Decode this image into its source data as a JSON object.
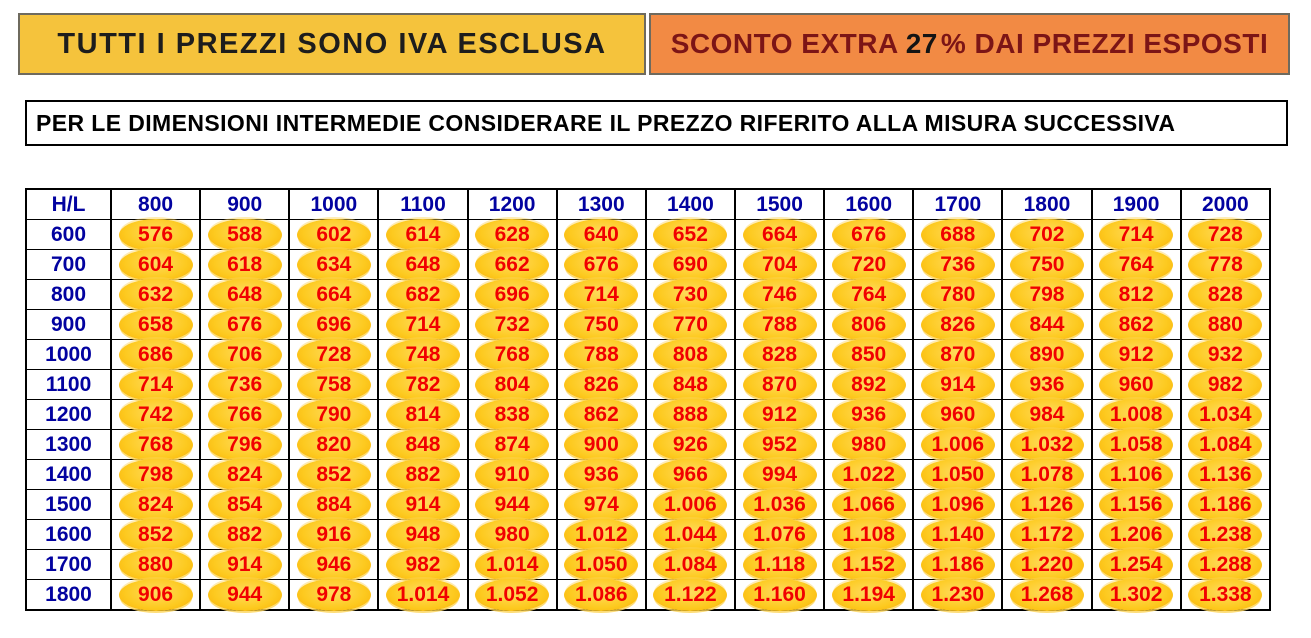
{
  "banners": {
    "vat_notice": "TUTTI I PREZZI SONO IVA ESCLUSA",
    "discount": {
      "prefix": "SCONTO EXTRA",
      "percent": "27",
      "suffix": "% DAI PREZZI ESPOSTI"
    },
    "note": "PER LE DIMENSIONI INTERMEDIE CONSIDERARE IL PREZZO RIFERITO ALLA MISURA SUCCESSIVA"
  },
  "colors": {
    "banner_yellow": "#f5c33c",
    "banner_orange": "#f28a44",
    "banner_text_dark": "#1d1d1d",
    "banner_text_maroon": "#7c1516",
    "header_navy": "#0202a0",
    "price_red": "#f10000",
    "pill_gold": "#fdca20"
  },
  "chart_data": {
    "type": "table",
    "title": "Listino prezzi per dimensioni H/L",
    "corner_label": "H/L",
    "columns": [
      "800",
      "900",
      "1000",
      "1100",
      "1200",
      "1300",
      "1400",
      "1500",
      "1600",
      "1700",
      "1800",
      "1900",
      "2000"
    ],
    "rows": [
      {
        "label": "600",
        "values": [
          "576",
          "588",
          "602",
          "614",
          "628",
          "640",
          "652",
          "664",
          "676",
          "688",
          "702",
          "714",
          "728"
        ]
      },
      {
        "label": "700",
        "values": [
          "604",
          "618",
          "634",
          "648",
          "662",
          "676",
          "690",
          "704",
          "720",
          "736",
          "750",
          "764",
          "778"
        ]
      },
      {
        "label": "800",
        "values": [
          "632",
          "648",
          "664",
          "682",
          "696",
          "714",
          "730",
          "746",
          "764",
          "780",
          "798",
          "812",
          "828"
        ]
      },
      {
        "label": "900",
        "values": [
          "658",
          "676",
          "696",
          "714",
          "732",
          "750",
          "770",
          "788",
          "806",
          "826",
          "844",
          "862",
          "880"
        ]
      },
      {
        "label": "1000",
        "values": [
          "686",
          "706",
          "728",
          "748",
          "768",
          "788",
          "808",
          "828",
          "850",
          "870",
          "890",
          "912",
          "932"
        ]
      },
      {
        "label": "1100",
        "values": [
          "714",
          "736",
          "758",
          "782",
          "804",
          "826",
          "848",
          "870",
          "892",
          "914",
          "936",
          "960",
          "982"
        ]
      },
      {
        "label": "1200",
        "values": [
          "742",
          "766",
          "790",
          "814",
          "838",
          "862",
          "888",
          "912",
          "936",
          "960",
          "984",
          "1.008",
          "1.034"
        ]
      },
      {
        "label": "1300",
        "values": [
          "768",
          "796",
          "820",
          "848",
          "874",
          "900",
          "926",
          "952",
          "980",
          "1.006",
          "1.032",
          "1.058",
          "1.084"
        ]
      },
      {
        "label": "1400",
        "values": [
          "798",
          "824",
          "852",
          "882",
          "910",
          "936",
          "966",
          "994",
          "1.022",
          "1.050",
          "1.078",
          "1.106",
          "1.136"
        ]
      },
      {
        "label": "1500",
        "values": [
          "824",
          "854",
          "884",
          "914",
          "944",
          "974",
          "1.006",
          "1.036",
          "1.066",
          "1.096",
          "1.126",
          "1.156",
          "1.186"
        ]
      },
      {
        "label": "1600",
        "values": [
          "852",
          "882",
          "916",
          "948",
          "980",
          "1.012",
          "1.044",
          "1.076",
          "1.108",
          "1.140",
          "1.172",
          "1.206",
          "1.238"
        ]
      },
      {
        "label": "1700",
        "values": [
          "880",
          "914",
          "946",
          "982",
          "1.014",
          "1.050",
          "1.084",
          "1.118",
          "1.152",
          "1.186",
          "1.220",
          "1.254",
          "1.288"
        ]
      },
      {
        "label": "1800",
        "values": [
          "906",
          "944",
          "978",
          "1.014",
          "1.052",
          "1.086",
          "1.122",
          "1.160",
          "1.194",
          "1.230",
          "1.268",
          "1.302",
          "1.338"
        ]
      }
    ]
  }
}
